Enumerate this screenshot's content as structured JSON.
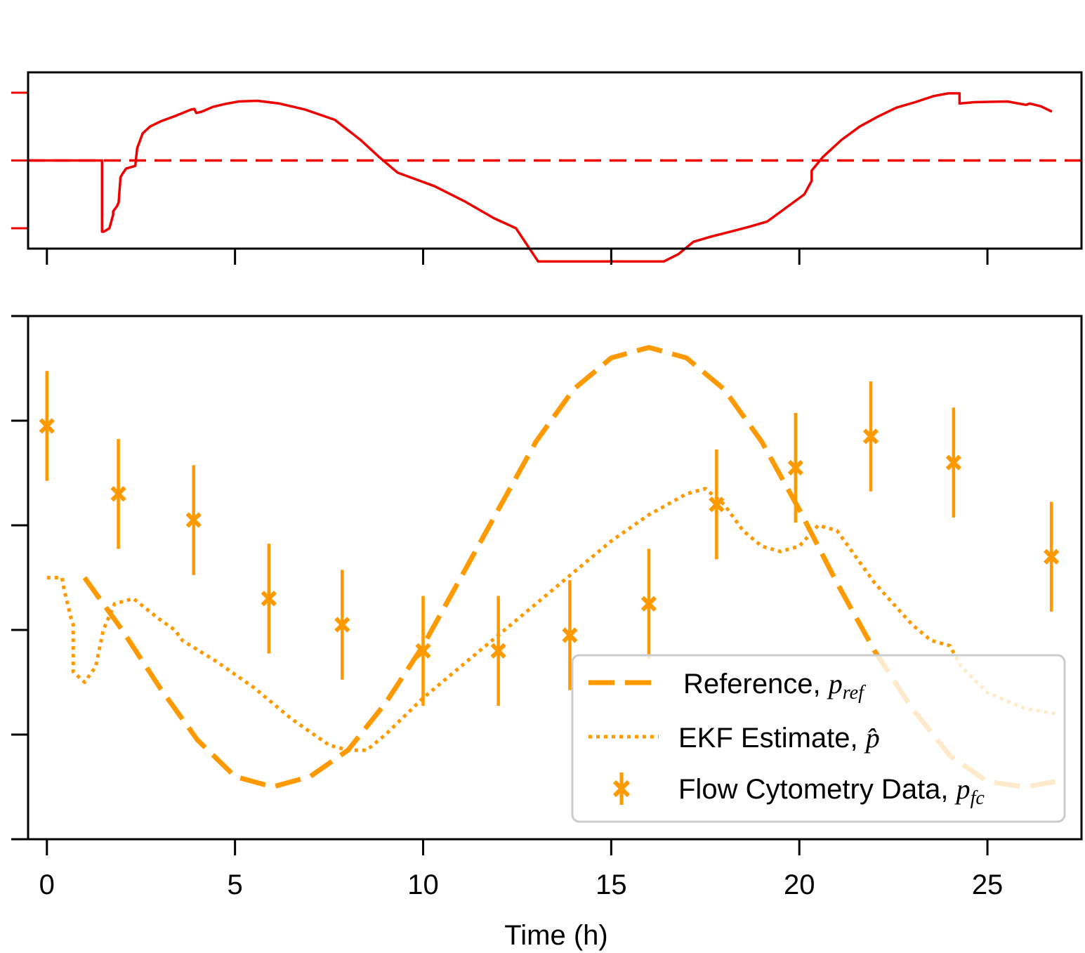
{
  "chart_data": [
    {
      "id": "top-panel",
      "type": "line",
      "title": "",
      "xlabel": "",
      "ylabel": "",
      "xlim": [
        -1,
        27.5
      ],
      "ylim": [
        -1.3,
        1.3
      ],
      "yticks": [
        -1,
        0,
        1
      ],
      "xticks": [
        0,
        5,
        10,
        15,
        20,
        25
      ],
      "show_x_tick_labels": false,
      "show_y_tick_labels": false,
      "colors": {
        "signal": "#ee0000",
        "setpoint": "#ee0000"
      },
      "series": [
        {
          "role": "signal",
          "style": "solid",
          "x": [
            -1,
            1.0,
            1.0,
            1.05,
            1.2,
            1.3,
            1.3,
            1.4,
            1.45,
            1.5,
            1.55,
            1.65,
            1.9,
            1.95,
            2.1,
            2.3,
            2.6,
            3.0,
            3.4,
            3.5,
            3.55,
            3.7,
            4.0,
            4.3,
            4.7,
            5.2,
            5.8,
            6.5,
            7.3,
            8.0,
            8.5,
            9.0,
            9.5,
            10.0,
            10.8,
            11.6,
            12.2,
            12.8,
            13.5,
            14.5,
            15.5,
            16.2,
            16.6,
            17.0,
            17.5,
            18.0,
            18.5,
            19.0,
            19.5,
            20.0,
            20.2,
            20.2,
            20.5,
            21.0,
            21.5,
            22.0,
            22.5,
            23.0,
            23.5,
            23.9,
            24.2,
            24.2,
            24.6,
            25.5,
            26.0,
            26.1,
            26.4,
            26.7
          ],
          "y": [
            0,
            0,
            -1.05,
            -1.05,
            -1.0,
            -0.8,
            -0.75,
            -0.68,
            -0.62,
            -0.25,
            -0.2,
            -0.12,
            -0.08,
            0.18,
            0.4,
            0.5,
            0.58,
            0.66,
            0.75,
            0.76,
            0.7,
            0.72,
            0.79,
            0.83,
            0.87,
            0.88,
            0.84,
            0.75,
            0.6,
            0.3,
            0.05,
            -0.18,
            -0.28,
            -0.38,
            -0.6,
            -0.85,
            -1.0,
            -1.49,
            -1.49,
            -1.49,
            -1.49,
            -1.49,
            -1.38,
            -1.2,
            -1.12,
            -1.05,
            -0.98,
            -0.9,
            -0.7,
            -0.5,
            -0.3,
            -0.15,
            0.05,
            0.3,
            0.5,
            0.65,
            0.78,
            0.86,
            0.95,
            0.99,
            0.99,
            0.84,
            0.86,
            0.87,
            0.82,
            0.84,
            0.8,
            0.72
          ]
        },
        {
          "role": "setpoint",
          "style": "dashed",
          "x": [
            -1,
            27.5
          ],
          "y": [
            0,
            0
          ]
        }
      ]
    },
    {
      "id": "bottom-panel",
      "type": "line",
      "title": "",
      "xlabel": "Time (h)",
      "ylabel": "",
      "xlim": [
        -0.5,
        27.5
      ],
      "ylim": [
        0,
        1
      ],
      "yticks": [
        0,
        0.2,
        0.4,
        0.6,
        0.8,
        1.0
      ],
      "xticks": [
        0,
        5,
        10,
        15,
        20,
        25
      ],
      "xtick_labels": [
        "0",
        "5",
        "10",
        "15",
        "20",
        "25"
      ],
      "show_y_tick_labels": false,
      "colors": {
        "series": "#ff9900"
      },
      "legend_position": "lower-right",
      "series": [
        {
          "name": "Reference, ",
          "name_symbol": "p",
          "name_subscript": "ref",
          "style": "dashed",
          "x": [
            1.0,
            2.0,
            3.0,
            4.0,
            5.0,
            6.0,
            7.0,
            8.0,
            9.0,
            10.0,
            11.0,
            12.0,
            13.0,
            14.0,
            15.0,
            16.0,
            17.0,
            18.0,
            19.0,
            20.0,
            21.0,
            22.0,
            23.0,
            24.0,
            25.0,
            26.0,
            26.8
          ],
          "y": [
            0.5,
            0.4,
            0.29,
            0.19,
            0.12,
            0.1,
            0.12,
            0.17,
            0.26,
            0.37,
            0.5,
            0.63,
            0.76,
            0.86,
            0.92,
            0.94,
            0.92,
            0.86,
            0.76,
            0.63,
            0.49,
            0.36,
            0.25,
            0.16,
            0.11,
            0.1,
            0.11
          ]
        },
        {
          "name": "EKF Estimate,  ",
          "name_symbol": "p̂",
          "name_subscript": "",
          "style": "dotted",
          "x": [
            0.0,
            0.4,
            0.45,
            0.65,
            0.7,
            0.7,
            1.0,
            1.3,
            1.5,
            1.8,
            2.3,
            3.0,
            3.4,
            3.6,
            4.5,
            5.5,
            6.5,
            7.5,
            8.0,
            8.5,
            9.0,
            10.0,
            11.0,
            12.0,
            13.0,
            14.0,
            15.0,
            16.0,
            16.5,
            17.0,
            17.5,
            18.0,
            18.5,
            19.0,
            19.5,
            20.0,
            20.5,
            21.0,
            21.5,
            22.0,
            22.5,
            23.0,
            23.5,
            24.0,
            24.3,
            25.0,
            26.0,
            26.8
          ],
          "y": [
            0.5,
            0.5,
            0.48,
            0.42,
            0.41,
            0.32,
            0.3,
            0.33,
            0.4,
            0.45,
            0.46,
            0.42,
            0.4,
            0.38,
            0.34,
            0.29,
            0.23,
            0.18,
            0.17,
            0.17,
            0.2,
            0.27,
            0.33,
            0.39,
            0.45,
            0.51,
            0.57,
            0.62,
            0.64,
            0.66,
            0.67,
            0.64,
            0.59,
            0.56,
            0.55,
            0.56,
            0.6,
            0.59,
            0.54,
            0.49,
            0.45,
            0.41,
            0.38,
            0.37,
            0.33,
            0.28,
            0.25,
            0.24
          ]
        },
        {
          "name": "Flow Cytometry Data,  ",
          "name_symbol": "p",
          "name_subscript": "fc",
          "style": "errorbar",
          "marker": "x",
          "x": [
            0.0,
            1.9,
            3.9,
            5.9,
            7.85,
            10.0,
            12.0,
            13.9,
            16.0,
            17.8,
            19.9,
            21.9,
            24.1,
            26.7
          ],
          "y": [
            0.79,
            0.66,
            0.61,
            0.46,
            0.41,
            0.36,
            0.36,
            0.39,
            0.45,
            0.64,
            0.71,
            0.77,
            0.72,
            0.54
          ],
          "yerr": [
            0.105,
            0.105,
            0.105,
            0.105,
            0.105,
            0.105,
            0.105,
            0.105,
            0.105,
            0.105,
            0.105,
            0.105,
            0.105,
            0.105
          ]
        }
      ]
    }
  ]
}
